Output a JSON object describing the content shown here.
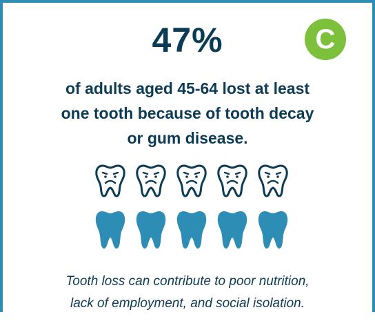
{
  "stat": {
    "value": "47%"
  },
  "badge": {
    "letter": "C"
  },
  "headline": {
    "lines": [
      "of adults aged 45-64 lost at least",
      "one tooth because of tooth decay",
      "or gum disease."
    ]
  },
  "teeth": {
    "sad_count": 5,
    "solid_count": 5
  },
  "caption": {
    "lines": [
      "Tooth loss can contribute to poor nutrition,",
      "lack of employment, and social isolation."
    ]
  },
  "colors": {
    "frame": "#2e8db5",
    "text": "#0c3b55",
    "badge": "#7cc03c",
    "tooth_fill": "#2e8db5"
  }
}
